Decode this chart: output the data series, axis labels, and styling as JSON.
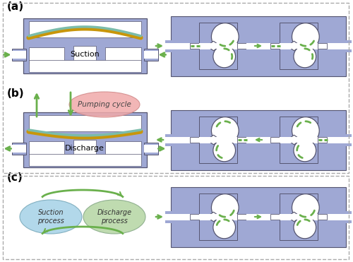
{
  "fig_width": 5.0,
  "fig_height": 3.71,
  "dpi": 100,
  "bg_color": "#ffffff",
  "valve_bg": "#9fa8d4",
  "valve_white": "#ffffff",
  "green_color": "#6ab04c",
  "membrane_gold": "#c8960a",
  "membrane_teal": "#7bbcaa",
  "outline_color": "#555570",
  "label_a": "(a)",
  "label_b": "(b)",
  "label_c": "(c)",
  "text_suction": "Suction",
  "text_discharge": "Discharge",
  "text_pumping": "Pumping cycle",
  "text_suction_process": "Suction\nprocess",
  "text_discharge_process": "Discharge\nprocess",
  "border_color": "#aaaaaa"
}
